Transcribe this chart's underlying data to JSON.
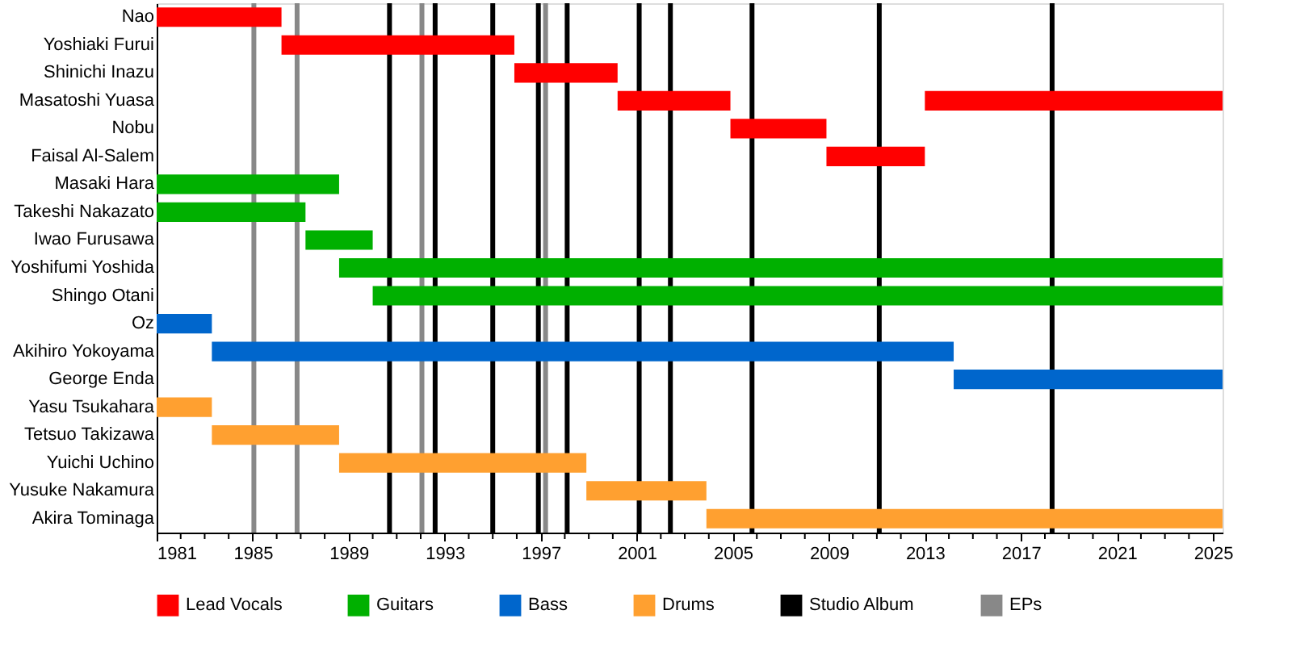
{
  "chart_data": {
    "type": "bar",
    "orientation": "horizontal",
    "legend": "bottom",
    "grid": false,
    "categories": [
      "Nao",
      "Yoshiaki Furui",
      "Shinichi Inazu",
      "Masatoshi Yuasa",
      "Nobu",
      "Faisal Al-Salem",
      "Masaki Hara",
      "Takeshi Nakazato",
      "Iwao Furusawa",
      "Yoshifumi Yoshida",
      "Shingo Otani",
      "Oz",
      "Akihiro Yokoyama",
      "George Enda",
      "Yasu Tsukahara",
      "Tetsuo Takizawa",
      "Yuichi Uchino",
      "Yusuke Nakamura",
      "Akira Tominaga"
    ],
    "series": [
      {
        "name": "Lead Vocals",
        "color": "#ff0000",
        "base": [
          1981,
          1986.2,
          1995.9,
          2000.2,
          2004.9,
          2008.9,
          null,
          null,
          null,
          null,
          null,
          null,
          null,
          null,
          null,
          null,
          null,
          null,
          null
        ],
        "values": [
          5.2,
          9.7,
          4.3,
          4.7,
          4.0,
          4.1,
          null,
          null,
          null,
          null,
          null,
          null,
          null,
          null,
          null,
          null,
          null,
          null,
          null
        ]
      },
      {
        "color": "#ff0000",
        "base": [
          null,
          null,
          null,
          2013.0,
          null,
          null,
          null,
          null,
          null,
          null,
          null,
          null,
          null,
          null,
          null,
          null,
          null,
          null,
          null
        ],
        "values": [
          null,
          null,
          null,
          12.4,
          null,
          null,
          null,
          null,
          null,
          null,
          null,
          null,
          null,
          null,
          null,
          null,
          null,
          null,
          null
        ]
      },
      {
        "name": "Guitars",
        "color": "#00b000",
        "base": [
          null,
          null,
          null,
          null,
          null,
          null,
          1981,
          1981,
          1987.2,
          1988.6,
          1990.0,
          null,
          null,
          null,
          null,
          null,
          null,
          null,
          null
        ],
        "values": [
          null,
          null,
          null,
          null,
          null,
          null,
          7.6,
          6.2,
          2.8,
          36.8,
          35.4,
          null,
          null,
          null,
          null,
          null,
          null,
          null,
          null
        ]
      },
      {
        "name": "Bass",
        "color": "#0066cc",
        "base": [
          null,
          null,
          null,
          null,
          null,
          null,
          null,
          null,
          null,
          null,
          null,
          1981,
          1983.3,
          2014.2,
          null,
          null,
          null,
          null,
          null
        ],
        "values": [
          null,
          null,
          null,
          null,
          null,
          null,
          null,
          null,
          null,
          null,
          null,
          2.3,
          30.9,
          11.2,
          null,
          null,
          null,
          null,
          null
        ]
      },
      {
        "name": "Drums",
        "color": "#ffa030",
        "base": [
          null,
          null,
          null,
          null,
          null,
          null,
          null,
          null,
          null,
          null,
          null,
          null,
          null,
          null,
          1981,
          1983.3,
          1988.6,
          1998.9,
          2003.9
        ],
        "values": [
          null,
          null,
          null,
          null,
          null,
          null,
          null,
          null,
          null,
          null,
          null,
          null,
          null,
          null,
          2.3,
          5.3,
          10.3,
          5.0,
          21.5
        ]
      }
    ],
    "ref_lines": [
      {
        "axis": "x",
        "value": 1990.7,
        "label": "Studio Album",
        "color": "#000000"
      },
      {
        "axis": "x",
        "value": 1992.6,
        "color": "#000000"
      },
      {
        "axis": "x",
        "value": 1995.0,
        "color": "#000000"
      },
      {
        "axis": "x",
        "value": 1996.9,
        "color": "#000000"
      },
      {
        "axis": "x",
        "value": 1998.1,
        "color": "#000000"
      },
      {
        "axis": "x",
        "value": 2001.1,
        "color": "#000000"
      },
      {
        "axis": "x",
        "value": 2002.4,
        "color": "#000000"
      },
      {
        "axis": "x",
        "value": 2005.8,
        "color": "#000000"
      },
      {
        "axis": "x",
        "value": 2011.1,
        "color": "#000000"
      },
      {
        "axis": "x",
        "value": 2018.3,
        "color": "#000000"
      },
      {
        "axis": "x",
        "value": 1985.05,
        "label": "EPs",
        "color": "#888888"
      },
      {
        "axis": "x",
        "value": 1986.85,
        "color": "#888888"
      },
      {
        "axis": "x",
        "value": 1992.05,
        "color": "#888888"
      },
      {
        "axis": "x",
        "value": 1997.2,
        "color": "#888888"
      }
    ],
    "xlim": [
      1981,
      2025.4
    ],
    "xticks": [
      1981,
      {
        "value": 1982,
        "label": null
      },
      {
        "value": 1983,
        "label": null
      },
      {
        "value": 1984,
        "label": null
      },
      1985,
      {
        "value": 1986,
        "label": null
      },
      {
        "value": 1987,
        "label": null
      },
      {
        "value": 1988,
        "label": null
      },
      1989,
      {
        "value": 1990,
        "label": null
      },
      {
        "value": 1991,
        "label": null
      },
      {
        "value": 1992,
        "label": null
      },
      1993,
      {
        "value": 1994,
        "label": null
      },
      {
        "value": 1995,
        "label": null
      },
      {
        "value": 1996,
        "label": null
      },
      1997,
      {
        "value": 1998,
        "label": null
      },
      {
        "value": 1999,
        "label": null
      },
      {
        "value": 2000,
        "label": null
      },
      2001,
      {
        "value": 2002,
        "label": null
      },
      {
        "value": 2003,
        "label": null
      },
      {
        "value": 2004,
        "label": null
      },
      2005,
      {
        "value": 2006,
        "label": null
      },
      {
        "value": 2007,
        "label": null
      },
      {
        "value": 2008,
        "label": null
      },
      2009,
      {
        "value": 2010,
        "label": null
      },
      {
        "value": 2011,
        "label": null
      },
      {
        "value": 2012,
        "label": null
      },
      2013,
      {
        "value": 2014,
        "label": null
      },
      {
        "value": 2015,
        "label": null
      },
      {
        "value": 2016,
        "label": null
      },
      2017,
      {
        "value": 2018,
        "label": null
      },
      {
        "value": 2019,
        "label": null
      },
      {
        "value": 2020,
        "label": null
      },
      2021,
      {
        "value": 2022,
        "label": null
      },
      {
        "value": 2023,
        "label": null
      },
      {
        "value": 2024,
        "label": null
      },
      2025
    ]
  }
}
